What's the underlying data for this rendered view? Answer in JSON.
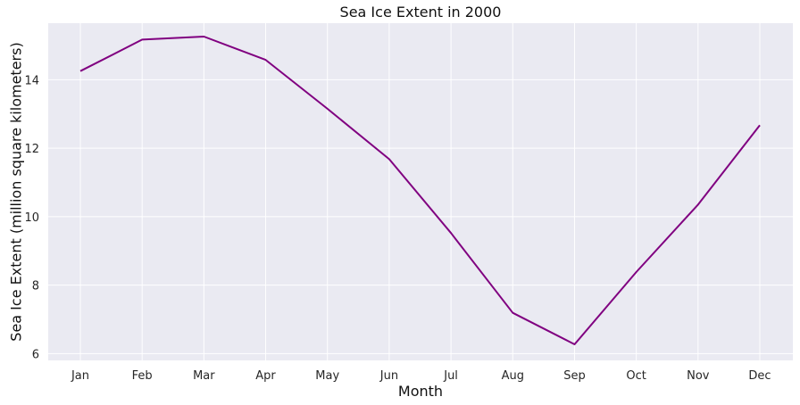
{
  "chart_data": {
    "type": "line",
    "title": "Sea Ice Extent in 2000",
    "xlabel": "Month",
    "ylabel": "Sea Ice Extent (million square kilometers)",
    "categories": [
      "Jan",
      "Feb",
      "Mar",
      "Apr",
      "May",
      "Jun",
      "Jul",
      "Aug",
      "Sep",
      "Oct",
      "Nov",
      "Dec"
    ],
    "series": [
      {
        "values": [
          14.25,
          15.17,
          15.26,
          14.58,
          13.15,
          11.68,
          9.52,
          7.19,
          6.27,
          8.38,
          10.35,
          12.67
        ],
        "color": "#800080"
      }
    ],
    "ylim": [
      5.8,
      15.65
    ],
    "yticks": [
      6,
      8,
      10,
      12,
      14
    ],
    "ytick_labels": [
      "6",
      "8",
      "10",
      "12",
      "14"
    ],
    "grid": true,
    "background": "#eaeaf2",
    "grid_color": "#ffffff"
  }
}
